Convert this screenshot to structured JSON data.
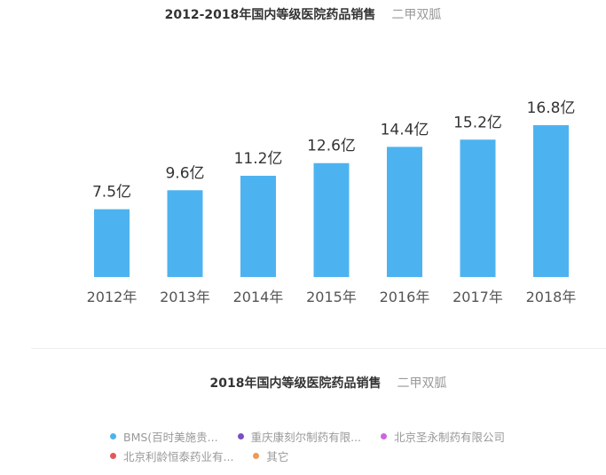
{
  "chart_data": {
    "type": "bar",
    "title": "2012-2018年国内等级医院药品销售",
    "subtitle": "二甲双胍",
    "categories": [
      "2012年",
      "2013年",
      "2014年",
      "2015年",
      "2016年",
      "2017年",
      "2018年"
    ],
    "values": [
      7.5,
      9.6,
      11.2,
      12.6,
      14.4,
      15.2,
      16.8
    ],
    "labels": [
      "7.5亿",
      "9.6亿",
      "11.2亿",
      "12.6亿",
      "14.4亿",
      "15.2亿",
      "16.8亿"
    ],
    "unit": "亿",
    "ylim": [
      0,
      17
    ],
    "grid": false,
    "color": "#4db3f0"
  },
  "pie_section": {
    "title": "2018年国内等级医院药品销售",
    "subtitle": "二甲双胍",
    "legend": [
      {
        "label": "BMS(百时美施贵...",
        "color": "#4db3f0"
      },
      {
        "label": "重庆康刻尔制药有限...",
        "color": "#7a4fc4"
      },
      {
        "label": "北京圣永制药有限公司",
        "color": "#cc66dd"
      },
      {
        "label": "北京利龄恒泰药业有...",
        "color": "#e05a5a"
      },
      {
        "label": "其它",
        "color": "#ee9955"
      }
    ]
  }
}
